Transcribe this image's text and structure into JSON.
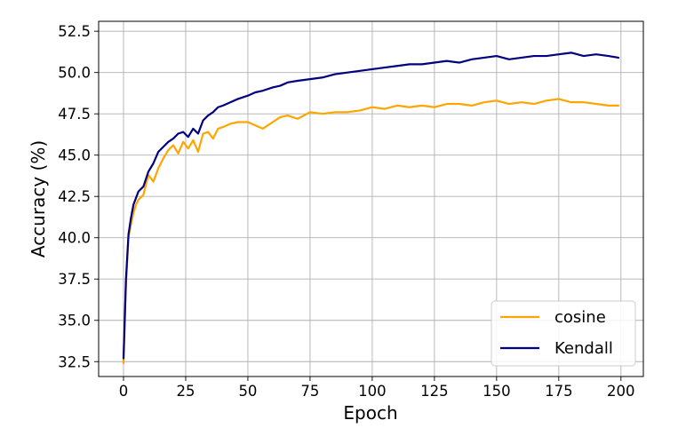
{
  "chart_data": {
    "type": "line",
    "title": "",
    "xlabel": "Epoch",
    "ylabel": "Accuracy (%)",
    "xlim": [
      -10,
      209
    ],
    "ylim": [
      31.6,
      53.1
    ],
    "xticks": [
      0,
      25,
      50,
      75,
      100,
      125,
      150,
      175,
      200
    ],
    "yticks": [
      32.5,
      35.0,
      37.5,
      40.0,
      42.5,
      45.0,
      47.5,
      50.0,
      52.5
    ],
    "xtick_labels": [
      "0",
      "25",
      "50",
      "75",
      "100",
      "125",
      "150",
      "175",
      "200"
    ],
    "ytick_labels": [
      "32.5",
      "35.0",
      "37.5",
      "40.0",
      "42.5",
      "45.0",
      "47.5",
      "50.0",
      "52.5"
    ],
    "grid": true,
    "legend_position": "lower-right",
    "series": [
      {
        "name": "cosine",
        "color": "#ffa500",
        "x": [
          0,
          1,
          2,
          3,
          4,
          5,
          6,
          8,
          10,
          12,
          14,
          16,
          18,
          20,
          22,
          24,
          26,
          28,
          30,
          32,
          34,
          36,
          38,
          40,
          43,
          46,
          50,
          53,
          56,
          60,
          63,
          66,
          70,
          75,
          80,
          85,
          90,
          95,
          100,
          105,
          110,
          115,
          120,
          125,
          130,
          135,
          140,
          145,
          150,
          155,
          160,
          165,
          170,
          175,
          180,
          185,
          190,
          195,
          199
        ],
        "y": [
          32.4,
          37.2,
          40.0,
          40.8,
          41.5,
          42.0,
          42.3,
          42.6,
          43.8,
          43.4,
          44.2,
          44.8,
          45.3,
          45.6,
          45.1,
          45.8,
          45.4,
          45.9,
          45.2,
          46.3,
          46.4,
          46.0,
          46.6,
          46.7,
          46.9,
          47.0,
          47.0,
          46.8,
          46.6,
          47.0,
          47.3,
          47.4,
          47.2,
          47.6,
          47.5,
          47.6,
          47.6,
          47.7,
          47.9,
          47.8,
          48.0,
          47.9,
          48.0,
          47.9,
          48.1,
          48.1,
          48.0,
          48.2,
          48.3,
          48.1,
          48.2,
          48.1,
          48.3,
          48.4,
          48.2,
          48.2,
          48.1,
          48.0,
          48.0
        ]
      },
      {
        "name": "Kendall",
        "color": "#000080",
        "x": [
          0,
          1,
          2,
          3,
          4,
          5,
          6,
          8,
          10,
          12,
          14,
          16,
          18,
          20,
          22,
          24,
          26,
          28,
          30,
          32,
          34,
          36,
          38,
          40,
          43,
          46,
          50,
          53,
          56,
          60,
          63,
          66,
          70,
          75,
          80,
          85,
          90,
          95,
          100,
          105,
          110,
          115,
          120,
          125,
          130,
          135,
          140,
          145,
          150,
          155,
          160,
          165,
          170,
          175,
          180,
          185,
          190,
          195,
          199
        ],
        "y": [
          32.7,
          37.5,
          40.2,
          41.2,
          42.0,
          42.4,
          42.8,
          43.1,
          44.0,
          44.5,
          45.2,
          45.5,
          45.8,
          46.0,
          46.3,
          46.4,
          46.1,
          46.6,
          46.3,
          47.1,
          47.4,
          47.6,
          47.9,
          48.0,
          48.2,
          48.4,
          48.6,
          48.8,
          48.9,
          49.1,
          49.2,
          49.4,
          49.5,
          49.6,
          49.7,
          49.9,
          50.0,
          50.1,
          50.2,
          50.3,
          50.4,
          50.5,
          50.5,
          50.6,
          50.7,
          50.6,
          50.8,
          50.9,
          51.0,
          50.8,
          50.9,
          51.0,
          51.0,
          51.1,
          51.2,
          51.0,
          51.1,
          51.0,
          50.9
        ]
      }
    ]
  }
}
